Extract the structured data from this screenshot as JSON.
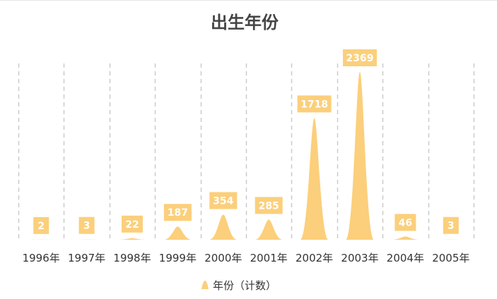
{
  "chart_data": {
    "type": "bar",
    "mark": "peak",
    "title": "出生年份",
    "categories": [
      "1996年",
      "1997年",
      "1998年",
      "1999年",
      "2000年",
      "2001年",
      "2002年",
      "2003年",
      "2004年",
      "2005年"
    ],
    "series": [
      {
        "name": "年份（计数）",
        "values": [
          2,
          3,
          22,
          187,
          354,
          285,
          1718,
          2369,
          46,
          3
        ],
        "color": "#FBCF7B"
      }
    ],
    "ylim": [
      0,
      2369
    ],
    "grid": "vertical-dashed",
    "legend": "bottom"
  },
  "colors": {
    "bar": "#FBCF7B",
    "label_bg": "#FBCF7B",
    "label_text": "#ffffff",
    "grid": "#cccccc",
    "title": "#444444",
    "tick": "#333333"
  }
}
